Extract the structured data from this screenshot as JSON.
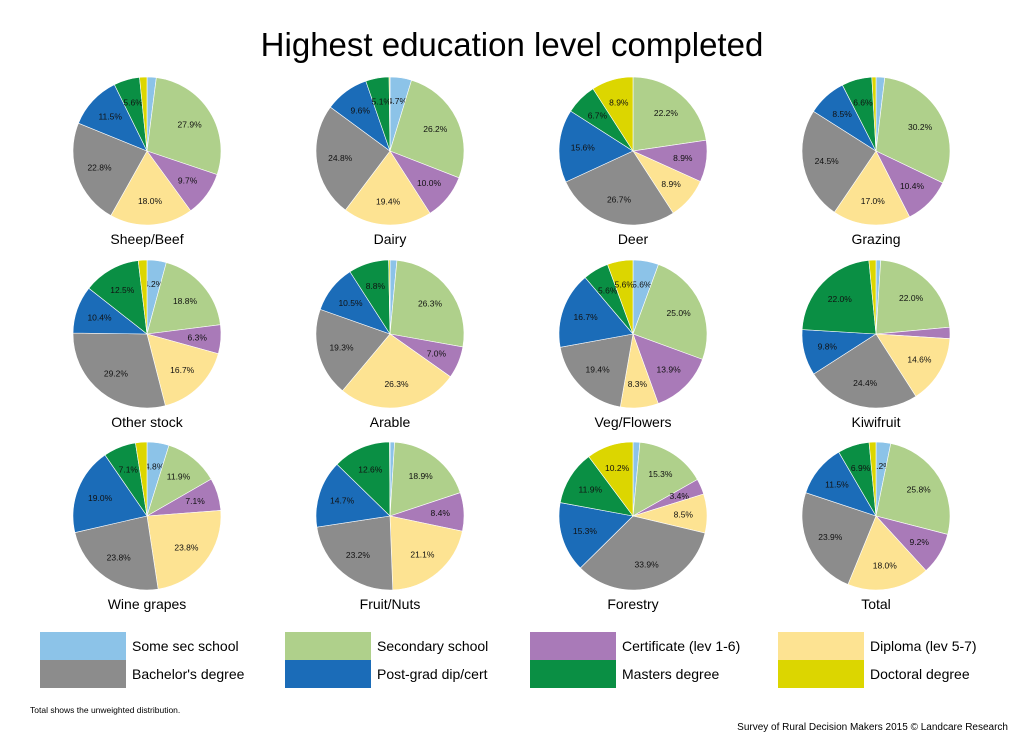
{
  "title": "Highest education level completed",
  "footnote": "Total shows the unweighted distribution.",
  "source": "Survey of Rural Decision Makers 2015 © Landcare Research",
  "categories": [
    {
      "label": "Some sec school",
      "color": "#8cc3e8"
    },
    {
      "label": "Secondary school",
      "color": "#afd08b"
    },
    {
      "label": "Certificate (lev 1-6)",
      "color": "#a97ab8"
    },
    {
      "label": "Diploma (lev 5-7)",
      "color": "#fde392"
    },
    {
      "label": "Bachelor's degree",
      "color": "#8c8c8c"
    },
    {
      "label": "Post-grad dip/cert",
      "color": "#1b6cb8"
    },
    {
      "label": "Masters degree",
      "color": "#0a8f44"
    },
    {
      "label": "Doctoral degree",
      "color": "#dcd600"
    }
  ],
  "chart_data": [
    {
      "type": "pie",
      "title": "Sheep/Beef",
      "values": [
        2.0,
        27.9,
        9.7,
        18.0,
        22.8,
        11.5,
        5.6,
        1.6
      ],
      "labels": [
        "",
        "27.9%",
        "9.7%",
        "18.0%",
        "22.8%",
        "11.5%",
        "5.6%",
        ""
      ]
    },
    {
      "type": "pie",
      "title": "Dairy",
      "values": [
        4.7,
        26.2,
        10.0,
        19.4,
        24.8,
        9.6,
        5.1,
        0.2
      ],
      "labels": [
        "4.7%",
        "26.2%",
        "10.0%",
        "19.4%",
        "24.8%",
        "9.6%",
        "5.1%",
        ""
      ]
    },
    {
      "type": "pie",
      "title": "Deer",
      "values": [
        0.0,
        22.2,
        8.9,
        8.9,
        26.7,
        15.6,
        6.7,
        8.9
      ],
      "labels": [
        "",
        "22.2%",
        "8.9%",
        "8.9%",
        "26.7%",
        "15.6%",
        "6.7%",
        "8.9%"
      ]
    },
    {
      "type": "pie",
      "title": "Grazing",
      "values": [
        1.9,
        30.2,
        10.4,
        17.0,
        24.5,
        8.5,
        6.6,
        0.9
      ],
      "labels": [
        "",
        "30.2%",
        "10.4%",
        "17.0%",
        "24.5%",
        "8.5%",
        "6.6%",
        ""
      ]
    },
    {
      "type": "pie",
      "title": "Other stock",
      "values": [
        4.2,
        18.8,
        6.3,
        16.7,
        29.2,
        10.4,
        12.5,
        1.9
      ],
      "labels": [
        "4.2%",
        "18.8%",
        "6.3%",
        "16.7%",
        "29.2%",
        "10.4%",
        "12.5%",
        ""
      ]
    },
    {
      "type": "pie",
      "title": "Arable",
      "values": [
        1.5,
        26.3,
        7.0,
        26.3,
        19.3,
        10.5,
        8.8,
        0.3
      ],
      "labels": [
        "",
        "26.3%",
        "7.0%",
        "26.3%",
        "19.3%",
        "10.5%",
        "8.8%",
        ""
      ]
    },
    {
      "type": "pie",
      "title": "Veg/Flowers",
      "values": [
        5.6,
        25.0,
        13.9,
        8.3,
        19.4,
        16.7,
        5.6,
        5.6
      ],
      "labels": [
        "5.6%",
        "25.0%",
        "13.9%",
        "8.3%",
        "19.4%",
        "16.7%",
        "5.6%",
        "5.6%"
      ]
    },
    {
      "type": "pie",
      "title": "Kiwifruit",
      "values": [
        1.0,
        22.0,
        2.4,
        14.6,
        24.4,
        9.8,
        22.0,
        1.5
      ],
      "labels": [
        "",
        "22.0%",
        "",
        "14.6%",
        "24.4%",
        "9.8%",
        "22.0%",
        ""
      ]
    },
    {
      "type": "pie",
      "title": "Wine grapes",
      "values": [
        4.8,
        11.9,
        7.1,
        23.8,
        23.8,
        19.0,
        7.1,
        2.5
      ],
      "labels": [
        "4.8%",
        "11.9%",
        "7.1%",
        "23.8%",
        "23.8%",
        "19.0%",
        "7.1%",
        ""
      ]
    },
    {
      "type": "pie",
      "title": "Fruit/Nuts",
      "values": [
        1.0,
        18.9,
        8.4,
        21.1,
        23.2,
        14.7,
        12.6,
        0.1
      ],
      "labels": [
        "",
        "18.9%",
        "8.4%",
        "21.1%",
        "23.2%",
        "14.7%",
        "12.6%",
        ""
      ]
    },
    {
      "type": "pie",
      "title": "Forestry",
      "values": [
        1.5,
        15.3,
        3.4,
        8.5,
        33.9,
        15.3,
        11.9,
        10.2
      ],
      "labels": [
        "",
        "15.3%",
        "3.4%",
        "8.5%",
        "33.9%",
        "15.3%",
        "11.9%",
        "10.2%"
      ]
    },
    {
      "type": "pie",
      "title": "Total",
      "values": [
        3.2,
        25.8,
        9.2,
        18.0,
        23.9,
        11.5,
        6.9,
        1.5
      ],
      "labels": [
        "3.2%",
        "25.8%",
        "9.2%",
        "18.0%",
        "23.9%",
        "11.5%",
        "6.9%",
        ""
      ]
    }
  ]
}
